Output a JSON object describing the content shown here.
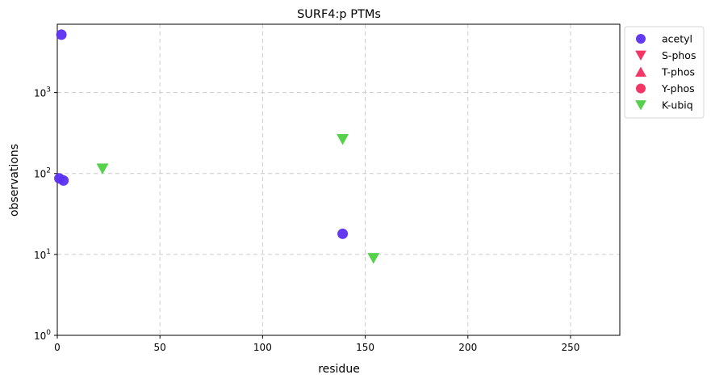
{
  "chart_data": {
    "type": "scatter",
    "title": "SURF4:p PTMs",
    "xlabel": "residue",
    "ylabel": "observations",
    "xlim": [
      0,
      274
    ],
    "ylim": [
      1,
      7000
    ],
    "yscale": "log",
    "grid": true,
    "legend_placement": "outside-top-right",
    "x_ticks": [
      "0",
      "50",
      "100",
      "150",
      "200",
      "250"
    ],
    "x_tick_values": [
      0,
      50,
      100,
      150,
      200,
      250
    ],
    "y_tick_values": [
      1,
      10,
      100,
      1000
    ],
    "y_ticks": [
      {
        "base": "10",
        "exp": "0"
      },
      {
        "base": "10",
        "exp": "1"
      },
      {
        "base": "10",
        "exp": "2"
      },
      {
        "base": "10",
        "exp": "3"
      }
    ],
    "series": [
      {
        "name": "acetyl",
        "marker": "circle",
        "color": "#5b2ff0",
        "points": [
          [
            2,
            5200
          ],
          [
            1,
            87
          ],
          [
            3,
            82
          ],
          [
            139,
            18
          ]
        ]
      },
      {
        "name": "S-phos",
        "marker": "triangle-down",
        "color": "#f22b5e",
        "points": []
      },
      {
        "name": "T-phos",
        "marker": "triangle-up",
        "color": "#f22b5e",
        "points": []
      },
      {
        "name": "Y-phos",
        "marker": "circle",
        "color": "#f22b5e",
        "points": []
      },
      {
        "name": "K-ubiq",
        "marker": "triangle-down",
        "color": "#4ccf42",
        "points": [
          [
            22,
            115
          ],
          [
            139,
            265
          ],
          [
            154,
            9
          ]
        ]
      }
    ]
  }
}
